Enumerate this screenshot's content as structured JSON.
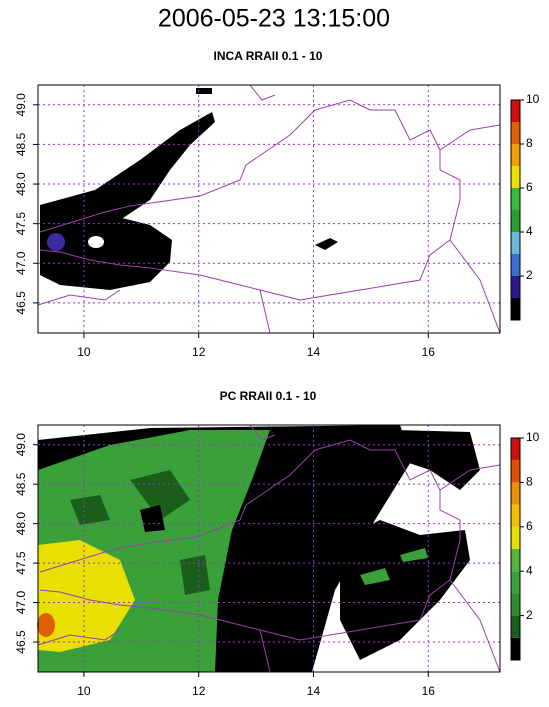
{
  "title": "2006-05-23 13:15:00",
  "chart_data": [
    {
      "type": "heatmap",
      "title": "INCA RRAII 0.1 - 10",
      "xlim": [
        9.2,
        17.25
      ],
      "ylim": [
        46.12,
        49.25
      ],
      "xticks": [
        10,
        12,
        14,
        16
      ],
      "yticks": [
        46.5,
        {
          "value": 47,
          "label": "47.0"
        },
        47.5,
        {
          "value": 48,
          "label": "48.0"
        },
        48.5,
        {
          "value": 49,
          "label": "49.0"
        }
      ],
      "grid": true,
      "grid_color": "#9933cc",
      "colorbar": {
        "lim": [
          0,
          10
        ],
        "ticks": [
          2,
          4,
          6,
          8,
          10
        ],
        "bounds": [
          0,
          1,
          2,
          3,
          4,
          5,
          6,
          7,
          8,
          9,
          10
        ],
        "colors": [
          "#000000",
          "#2b1a8c",
          "#3a6fd0",
          "#6ab8d8",
          "#2e9e2e",
          "#3cb83c",
          "#f0e000",
          "#f0a000",
          "#e06000",
          "#d01010"
        ]
      }
    },
    {
      "type": "heatmap",
      "title": "PC RRAII 0.1 - 10",
      "xlim": [
        9.2,
        17.25
      ],
      "ylim": [
        46.12,
        49.25
      ],
      "xticks": [
        10,
        12,
        14,
        16
      ],
      "yticks": [
        46.5,
        {
          "value": 47,
          "label": "47.0"
        },
        47.5,
        {
          "value": 48,
          "label": "48.0"
        },
        48.5,
        {
          "value": 49,
          "label": "49.0"
        }
      ],
      "grid": true,
      "grid_color": "#9933cc",
      "colorbar": {
        "lim": [
          0,
          10
        ],
        "ticks": [
          2,
          4,
          6,
          8,
          10
        ],
        "bounds": [
          0,
          1,
          2,
          3,
          4,
          5,
          6,
          7,
          8,
          9,
          10
        ],
        "colors": [
          "#000000",
          "#1a5e1a",
          "#2e8b2e",
          "#3aa03a",
          "#55b53a",
          "#e8e000",
          "#f0c000",
          "#f08c00",
          "#e05000",
          "#d01010"
        ]
      }
    }
  ]
}
